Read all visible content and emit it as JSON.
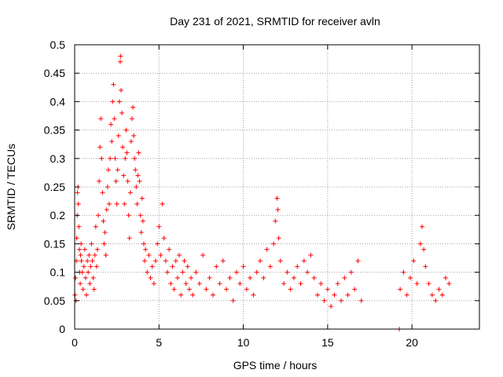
{
  "chart_data": {
    "type": "scatter",
    "title": "Day 231 of 2021, SRMTID for receiver avln",
    "xlabel": "GPS time / hours",
    "ylabel": "SRMTID / TECUs",
    "xlim": [
      0,
      24
    ],
    "ylim": [
      0,
      0.5
    ],
    "xticks": [
      0,
      5,
      10,
      15,
      20
    ],
    "yticks": [
      0,
      0.05,
      0.1,
      0.15,
      0.2,
      0.25,
      0.3,
      0.35,
      0.4,
      0.45,
      0.5
    ],
    "xtick_labels": [
      "0",
      "5",
      "10",
      "15",
      "20"
    ],
    "ytick_labels": [
      "0",
      "0.05",
      "0.1",
      "0.15",
      "0.2",
      "0.25",
      "0.3",
      "0.35",
      "0.4",
      "0.45",
      "0.5"
    ],
    "grid": true,
    "marker": "+",
    "color": "#ff0000",
    "series": [
      {
        "name": "SRMTID",
        "points": [
          [
            0.02,
            0.06
          ],
          [
            0.05,
            0.09
          ],
          [
            0.08,
            0.05
          ],
          [
            0.1,
            0.12
          ],
          [
            0.12,
            0.16
          ],
          [
            0.15,
            0.2
          ],
          [
            0.17,
            0.24
          ],
          [
            0.2,
            0.25
          ],
          [
            0.22,
            0.22
          ],
          [
            0.25,
            0.18
          ],
          [
            0.28,
            0.14
          ],
          [
            0.3,
            0.1
          ],
          [
            0.33,
            0.08
          ],
          [
            0.35,
            0.13
          ],
          [
            0.38,
            0.15
          ],
          [
            0.4,
            0.12
          ],
          [
            0.45,
            0.1
          ],
          [
            0.5,
            0.07
          ],
          [
            0.55,
            0.11
          ],
          [
            0.6,
            0.14
          ],
          [
            0.65,
            0.09
          ],
          [
            0.7,
            0.06
          ],
          [
            0.75,
            0.12
          ],
          [
            0.8,
            0.1
          ],
          [
            0.85,
            0.13
          ],
          [
            0.9,
            0.08
          ],
          [
            0.95,
            0.11
          ],
          [
            1.0,
            0.15
          ],
          [
            1.05,
            0.12
          ],
          [
            1.1,
            0.09
          ],
          [
            1.15,
            0.07
          ],
          [
            1.2,
            0.13
          ],
          [
            1.25,
            0.18
          ],
          [
            1.3,
            0.11
          ],
          [
            1.35,
            0.14
          ],
          [
            1.4,
            0.2
          ],
          [
            1.45,
            0.26
          ],
          [
            1.5,
            0.32
          ],
          [
            1.55,
            0.37
          ],
          [
            1.6,
            0.3
          ],
          [
            1.65,
            0.24
          ],
          [
            1.7,
            0.19
          ],
          [
            1.75,
            0.15
          ],
          [
            1.8,
            0.17
          ],
          [
            1.85,
            0.13
          ],
          [
            1.9,
            0.21
          ],
          [
            1.95,
            0.25
          ],
          [
            2.0,
            0.28
          ],
          [
            2.05,
            0.22
          ],
          [
            2.1,
            0.3
          ],
          [
            2.15,
            0.36
          ],
          [
            2.2,
            0.33
          ],
          [
            2.25,
            0.4
          ],
          [
            2.3,
            0.43
          ],
          [
            2.35,
            0.37
          ],
          [
            2.4,
            0.3
          ],
          [
            2.45,
            0.26
          ],
          [
            2.5,
            0.22
          ],
          [
            2.55,
            0.28
          ],
          [
            2.6,
            0.34
          ],
          [
            2.65,
            0.4
          ],
          [
            2.7,
            0.47
          ],
          [
            2.72,
            0.48
          ],
          [
            2.75,
            0.42
          ],
          [
            2.8,
            0.38
          ],
          [
            2.85,
            0.32
          ],
          [
            2.9,
            0.27
          ],
          [
            2.95,
            0.22
          ],
          [
            3.0,
            0.3
          ],
          [
            3.05,
            0.35
          ],
          [
            3.1,
            0.31
          ],
          [
            3.15,
            0.26
          ],
          [
            3.2,
            0.2
          ],
          [
            3.25,
            0.16
          ],
          [
            3.3,
            0.24
          ],
          [
            3.35,
            0.33
          ],
          [
            3.4,
            0.37
          ],
          [
            3.45,
            0.39
          ],
          [
            3.5,
            0.34
          ],
          [
            3.55,
            0.3
          ],
          [
            3.6,
            0.28
          ],
          [
            3.65,
            0.25
          ],
          [
            3.7,
            0.22
          ],
          [
            3.75,
            0.27
          ],
          [
            3.8,
            0.31
          ],
          [
            3.85,
            0.26
          ],
          [
            3.9,
            0.2
          ],
          [
            3.95,
            0.17
          ],
          [
            4.0,
            0.23
          ],
          [
            4.05,
            0.19
          ],
          [
            4.1,
            0.15
          ],
          [
            4.15,
            0.12
          ],
          [
            4.2,
            0.14
          ],
          [
            4.3,
            0.1
          ],
          [
            4.4,
            0.13
          ],
          [
            4.5,
            0.09
          ],
          [
            4.6,
            0.11
          ],
          [
            4.7,
            0.08
          ],
          [
            4.8,
            0.12
          ],
          [
            4.9,
            0.15
          ],
          [
            5.0,
            0.18
          ],
          [
            5.1,
            0.13
          ],
          [
            5.2,
            0.22
          ],
          [
            5.3,
            0.16
          ],
          [
            5.4,
            0.12
          ],
          [
            5.5,
            0.1
          ],
          [
            5.6,
            0.14
          ],
          [
            5.7,
            0.08
          ],
          [
            5.8,
            0.11
          ],
          [
            5.9,
            0.07
          ],
          [
            6.0,
            0.12
          ],
          [
            6.1,
            0.09
          ],
          [
            6.2,
            0.13
          ],
          [
            6.3,
            0.06
          ],
          [
            6.4,
            0.1
          ],
          [
            6.5,
            0.12
          ],
          [
            6.6,
            0.08
          ],
          [
            6.7,
            0.11
          ],
          [
            6.8,
            0.07
          ],
          [
            6.9,
            0.09
          ],
          [
            7.0,
            0.06
          ],
          [
            7.2,
            0.1
          ],
          [
            7.4,
            0.08
          ],
          [
            7.6,
            0.13
          ],
          [
            7.8,
            0.07
          ],
          [
            8.0,
            0.09
          ],
          [
            8.2,
            0.06
          ],
          [
            8.4,
            0.11
          ],
          [
            8.6,
            0.08
          ],
          [
            8.8,
            0.12
          ],
          [
            9.0,
            0.07
          ],
          [
            9.2,
            0.09
          ],
          [
            9.4,
            0.05
          ],
          [
            9.6,
            0.1
          ],
          [
            9.8,
            0.08
          ],
          [
            10.0,
            0.11
          ],
          [
            10.2,
            0.07
          ],
          [
            10.4,
            0.09
          ],
          [
            10.6,
            0.06
          ],
          [
            10.8,
            0.1
          ],
          [
            11.0,
            0.12
          ],
          [
            11.2,
            0.09
          ],
          [
            11.4,
            0.14
          ],
          [
            11.6,
            0.11
          ],
          [
            11.8,
            0.15
          ],
          [
            11.9,
            0.19
          ],
          [
            12.0,
            0.23
          ],
          [
            12.05,
            0.21
          ],
          [
            12.1,
            0.16
          ],
          [
            12.2,
            0.12
          ],
          [
            12.4,
            0.08
          ],
          [
            12.6,
            0.1
          ],
          [
            12.8,
            0.07
          ],
          [
            13.0,
            0.09
          ],
          [
            13.2,
            0.11
          ],
          [
            13.4,
            0.08
          ],
          [
            13.6,
            0.12
          ],
          [
            13.8,
            0.1
          ],
          [
            14.0,
            0.13
          ],
          [
            14.2,
            0.09
          ],
          [
            14.4,
            0.06
          ],
          [
            14.6,
            0.08
          ],
          [
            14.8,
            0.05
          ],
          [
            15.0,
            0.07
          ],
          [
            15.2,
            0.04
          ],
          [
            15.4,
            0.06
          ],
          [
            15.6,
            0.08
          ],
          [
            15.8,
            0.05
          ],
          [
            16.0,
            0.09
          ],
          [
            16.2,
            0.06
          ],
          [
            16.4,
            0.1
          ],
          [
            16.6,
            0.07
          ],
          [
            16.8,
            0.12
          ],
          [
            17.0,
            0.05
          ],
          [
            19.25,
            0.0
          ],
          [
            19.3,
            0.07
          ],
          [
            19.5,
            0.1
          ],
          [
            19.7,
            0.06
          ],
          [
            19.9,
            0.09
          ],
          [
            20.1,
            0.12
          ],
          [
            20.3,
            0.08
          ],
          [
            20.5,
            0.15
          ],
          [
            20.6,
            0.18
          ],
          [
            20.7,
            0.14
          ],
          [
            20.8,
            0.11
          ],
          [
            21.0,
            0.08
          ],
          [
            21.2,
            0.06
          ],
          [
            21.4,
            0.05
          ],
          [
            21.6,
            0.07
          ],
          [
            21.8,
            0.06
          ],
          [
            22.0,
            0.09
          ],
          [
            22.2,
            0.08
          ]
        ]
      }
    ]
  }
}
